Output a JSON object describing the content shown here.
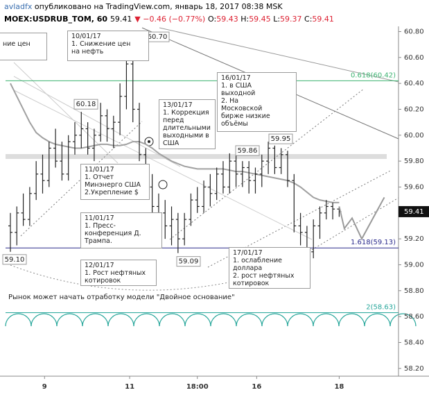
{
  "chart_data": {
    "type": "ohlc",
    "header": {
      "author": "avladfx",
      "published": "опубликовано на TradingView.com, январь 18, 2017 08:38 MSK",
      "symbol": "MOEX:USDRUB_TOM, 60",
      "last": "59.41",
      "change": "▼ −0.46 (−0.77%)",
      "ohlc": [
        {
          "key": "O:",
          "value": "59.43"
        },
        {
          "key": "H:",
          "value": "59.45"
        },
        {
          "key": "L:",
          "value": "59.37"
        },
        {
          "key": "C:",
          "value": "59.41"
        }
      ]
    },
    "color": "#222222",
    "values": [
      [
        59.3,
        59.4,
        59.1,
        59.25
      ],
      [
        59.25,
        59.45,
        59.15,
        59.4
      ],
      [
        59.4,
        59.55,
        59.3,
        59.35
      ],
      [
        59.35,
        59.6,
        59.3,
        59.55
      ],
      [
        59.55,
        59.8,
        59.5,
        59.7
      ],
      [
        59.7,
        59.85,
        59.55,
        59.65
      ],
      [
        59.65,
        59.95,
        59.6,
        59.9
      ],
      [
        59.9,
        60.05,
        59.75,
        59.8
      ],
      [
        59.8,
        59.95,
        59.65,
        59.7
      ],
      [
        59.7,
        60.0,
        59.65,
        59.95
      ],
      [
        59.95,
        60.1,
        59.85,
        60.0
      ],
      [
        60.0,
        60.18,
        59.9,
        60.05
      ],
      [
        60.05,
        60.1,
        59.85,
        59.9
      ],
      [
        59.9,
        60.05,
        59.8,
        60.0
      ],
      [
        60.0,
        60.25,
        59.95,
        60.15
      ],
      [
        60.15,
        60.2,
        59.95,
        60.05
      ],
      [
        60.05,
        60.15,
        59.9,
        60.1
      ],
      [
        60.1,
        60.4,
        60.0,
        60.3
      ],
      [
        60.3,
        60.7,
        60.2,
        60.55
      ],
      [
        60.55,
        60.6,
        60.1,
        60.2
      ],
      [
        60.2,
        60.25,
        59.8,
        59.85
      ],
      [
        59.85,
        59.9,
        59.55,
        59.6
      ],
      [
        59.6,
        59.7,
        59.35,
        59.45
      ],
      [
        59.45,
        59.55,
        59.25,
        59.4
      ],
      [
        59.4,
        59.5,
        59.2,
        59.3
      ],
      [
        59.3,
        59.45,
        59.15,
        59.35
      ],
      [
        59.35,
        59.4,
        59.09,
        59.2
      ],
      [
        59.2,
        59.4,
        59.15,
        59.35
      ],
      [
        59.35,
        59.55,
        59.3,
        59.5
      ],
      [
        59.5,
        59.6,
        59.4,
        59.45
      ],
      [
        59.45,
        59.65,
        59.4,
        59.6
      ],
      [
        59.6,
        59.7,
        59.45,
        59.55
      ],
      [
        59.55,
        59.75,
        59.5,
        59.7
      ],
      [
        59.7,
        59.8,
        59.55,
        59.6
      ],
      [
        59.6,
        59.86,
        59.55,
        59.8
      ],
      [
        59.8,
        59.85,
        59.6,
        59.7
      ],
      [
        59.7,
        59.8,
        59.6,
        59.75
      ],
      [
        59.75,
        59.8,
        59.55,
        59.65
      ],
      [
        59.65,
        59.75,
        59.55,
        59.7
      ],
      [
        59.7,
        59.85,
        59.6,
        59.8
      ],
      [
        59.8,
        59.95,
        59.7,
        59.9
      ],
      [
        59.9,
        59.92,
        59.7,
        59.75
      ],
      [
        59.75,
        59.9,
        59.7,
        59.85
      ],
      [
        59.85,
        59.88,
        59.6,
        59.65
      ],
      [
        59.65,
        59.7,
        59.25,
        59.3
      ],
      [
        59.3,
        59.4,
        59.15,
        59.25
      ],
      [
        59.25,
        59.3,
        58.95,
        59.1
      ],
      [
        59.1,
        59.35,
        59.05,
        59.3
      ],
      [
        59.3,
        59.45,
        59.2,
        59.4
      ],
      [
        59.4,
        59.5,
        59.35,
        59.45
      ],
      [
        59.45,
        59.48,
        59.35,
        59.43
      ],
      [
        59.43,
        59.45,
        59.37,
        59.41
      ]
    ],
    "moving_average": {
      "color": "#a0a0a0",
      "values": [
        60.4,
        60.3,
        60.2,
        60.1,
        60.02,
        59.98,
        59.95,
        59.93,
        59.92,
        59.91,
        59.9,
        59.9,
        59.91,
        59.92,
        59.93,
        59.93,
        59.92,
        59.92,
        59.93,
        59.95,
        59.95,
        59.93,
        59.9,
        59.86,
        59.83,
        59.8,
        59.78,
        59.76,
        59.75,
        59.74,
        59.74,
        59.74,
        59.74,
        59.74,
        59.73,
        59.72,
        59.72,
        59.71,
        59.7,
        59.69,
        59.68,
        59.67,
        59.66,
        59.65,
        59.63,
        59.6,
        59.56,
        59.52,
        59.5,
        59.49,
        59.48,
        59.48
      ]
    },
    "projection": {
      "color": "#999999",
      "x": [
        51,
        51.8,
        53,
        54.5,
        58
      ],
      "values": [
        59.45,
        59.28,
        59.36,
        59.2,
        59.52
      ]
    },
    "xlim": [
      -0.75,
      60.2
    ],
    "xticks": [
      {
        "value": 5.3,
        "label": "9"
      },
      {
        "value": 18.5,
        "label": "11"
      },
      {
        "value": 29,
        "label": "18:00"
      },
      {
        "value": 38.2,
        "label": "16"
      },
      {
        "value": 51,
        "label": "18"
      }
    ],
    "ylim": [
      58.14,
      60.84
    ],
    "yticks": [
      {
        "value": 58.2,
        "label": "58.20"
      },
      {
        "value": 58.4,
        "label": "58.40"
      },
      {
        "value": 58.6,
        "label": "58.60"
      },
      {
        "value": 58.8,
        "label": "58.80"
      },
      {
        "value": 59.0,
        "label": "59.00"
      },
      {
        "value": 59.2,
        "label": "59.20"
      },
      {
        "value": 59.6,
        "label": "59.60"
      },
      {
        "value": 59.8,
        "label": "59.80"
      },
      {
        "value": 60.0,
        "label": "60.00"
      },
      {
        "value": 60.2,
        "label": "60.20"
      },
      {
        "value": 60.4,
        "label": "60.40"
      },
      {
        "value": 60.6,
        "label": "60.60"
      },
      {
        "value": 60.8,
        "label": "60.80"
      }
    ],
    "last_price": {
      "value": 59.41,
      "label": "59.41"
    },
    "levels": [
      {
        "value": 60.42,
        "label": "0.618(60.42)",
        "color": "#3cb371"
      },
      {
        "value": 59.13,
        "label": "1.618(59.13)",
        "color": "#2a2a8c"
      },
      {
        "value": 58.63,
        "label": "2(58.63)",
        "color": "#26a69a"
      }
    ],
    "price_labels": [
      {
        "value": 60.7,
        "label": "60.70"
      },
      {
        "value": 60.18,
        "label": "60.18"
      },
      {
        "value": 59.1,
        "label": "59.10"
      },
      {
        "value": 59.09,
        "label": "59.09"
      },
      {
        "value": 59.95,
        "label": "59.95"
      },
      {
        "value": 59.86,
        "label": "59.86"
      }
    ],
    "annotations": [
      {
        "lines": [
          "ние цен"
        ]
      },
      {
        "lines": [
          "10/01/17",
          "1. Снижение цен",
          "на нефть"
        ]
      },
      {
        "lines": [
          "13/01/17",
          "1. Коррекция",
          "перед",
          "длительными",
          "выходными в",
          "США"
        ]
      },
      {
        "lines": [
          "16/01/17",
          "1. в США",
          "выходной",
          "2. На",
          "Московской",
          "бирже низкие",
          "объёмы"
        ]
      },
      {
        "lines": [
          "11/01/17",
          "1. Отчет",
          "Минэнерго США",
          "2.Укрепление $"
        ]
      },
      {
        "lines": [
          "11/01/17",
          "1. Пресс-",
          "конференция Д.",
          "Трампа."
        ]
      },
      {
        "lines": [
          "12/01/17",
          "1. Рост нефтяных",
          "котировок"
        ]
      },
      {
        "lines": [
          "17/01/17",
          "1. ослабление",
          "доллара",
          "2. рост нефтяных",
          "котировок"
        ]
      }
    ],
    "note": "Рынок может начать отработку модели \"Двойное основание\""
  }
}
